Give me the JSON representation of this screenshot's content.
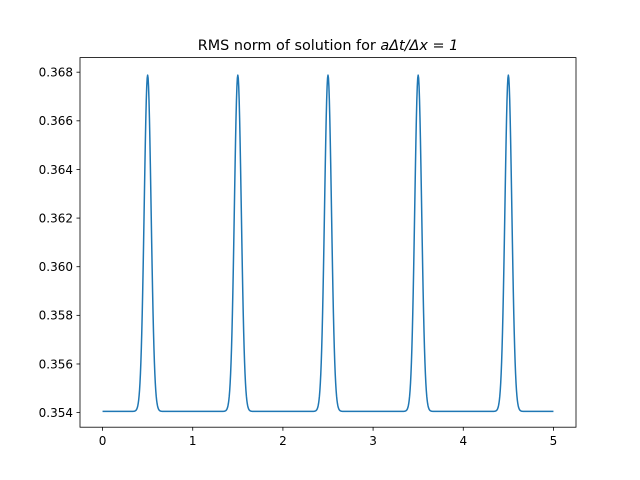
{
  "chart_data": {
    "type": "line",
    "title_plain": "RMS norm of solution for ",
    "title_math": "aΔt/Δx = 1",
    "xlabel": "",
    "ylabel": "",
    "xlim": [
      -0.25,
      5.25
    ],
    "ylim": [
      0.3534,
      0.3686
    ],
    "x_ticks": [
      0,
      1,
      2,
      3,
      4,
      5
    ],
    "x_tick_labels": [
      "0",
      "1",
      "2",
      "3",
      "4",
      "5"
    ],
    "y_ticks": [
      0.354,
      0.356,
      0.358,
      0.36,
      0.362,
      0.364,
      0.366,
      0.368
    ],
    "y_tick_labels": [
      "0.354",
      "0.356",
      "0.358",
      "0.360",
      "0.362",
      "0.364",
      "0.366",
      "0.368"
    ],
    "grid": false,
    "series": [
      {
        "color": "#1f77b4",
        "x_range": [
          0,
          5
        ],
        "baseline": 0.35405,
        "peak_value": 0.36788,
        "peak_x": [
          0.5,
          1.5,
          2.5,
          3.5,
          4.5
        ],
        "peak_half_width": 0.045
      }
    ]
  }
}
